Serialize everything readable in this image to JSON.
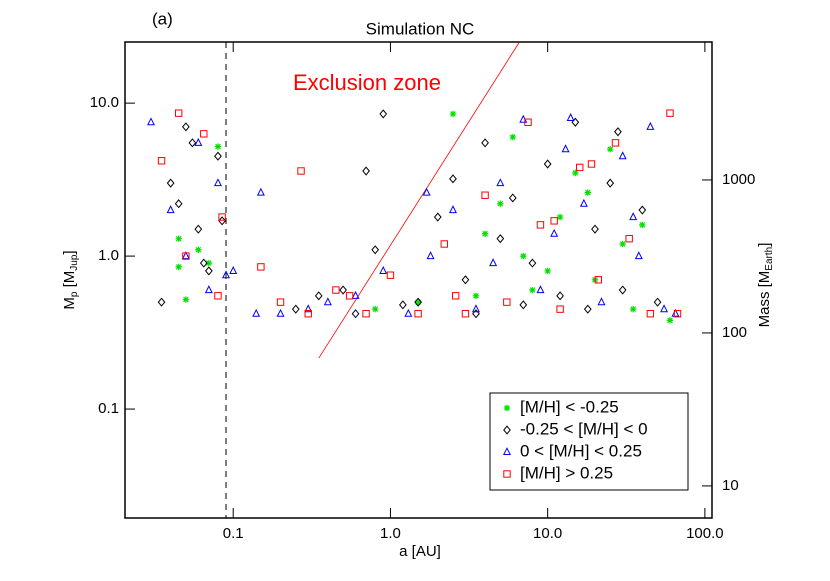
{
  "chart_data": {
    "type": "scatter",
    "panel_label": "(a)",
    "title": "Simulation NC",
    "x_label": "a [AU]",
    "y_label_parts": [
      "M",
      "p",
      " [M",
      "Jup",
      "]"
    ],
    "y2_label_parts": [
      "Mass [M",
      "Earth",
      "]"
    ],
    "annotation": "Exclusion zone",
    "annotation_color": "#ff0000",
    "exclusion_line": {
      "x": [
        0.35,
        6.6
      ],
      "y": [
        0.215,
        25
      ]
    },
    "vline": 0.09,
    "log_x": true,
    "log_y": true,
    "xlim": [
      0.0205,
      111
    ],
    "ylim": [
      0.0194,
      25.1
    ],
    "y2lim": [
      6.17,
      7977
    ],
    "xticks": [
      0.1,
      {
        "value": 1,
        "label": "1.0"
      },
      {
        "value": 10,
        "label": "10.0"
      },
      {
        "value": 100,
        "label": "100.0"
      }
    ],
    "yticks": [
      0.1,
      {
        "value": 1,
        "label": "1.0"
      },
      {
        "value": 10,
        "label": "10.0"
      }
    ],
    "y2ticks": [
      10,
      100,
      1000
    ],
    "legend": "lower right",
    "series": [
      {
        "name": "[M/H] < -0.25",
        "color": "#00e000",
        "marker": "asterisk",
        "x": [
          0.045,
          0.05,
          0.07,
          0.08,
          0.06,
          2.5,
          3.5,
          5,
          7,
          8,
          12,
          15,
          20,
          25,
          30,
          35,
          1.5,
          0.8,
          4,
          6,
          10,
          18,
          40,
          60,
          0.045
        ],
        "y": [
          1.3,
          0.52,
          0.9,
          5.2,
          1.1,
          8.5,
          0.55,
          2.2,
          1.0,
          0.6,
          1.8,
          3.5,
          0.7,
          5.0,
          1.2,
          0.45,
          0.5,
          0.45,
          1.4,
          6.0,
          0.8,
          2.6,
          1.6,
          0.38,
          0.85
        ]
      },
      {
        "name": "-0.25 < [M/H] < 0",
        "color": "#000000",
        "marker": "diamond",
        "x": [
          0.035,
          0.04,
          0.05,
          0.06,
          0.07,
          0.08,
          0.085,
          0.045,
          0.055,
          0.065,
          0.25,
          0.35,
          0.5,
          0.7,
          0.9,
          1.2,
          0.8,
          1.5,
          2,
          2.5,
          3,
          4,
          5,
          6,
          8,
          10,
          12,
          15,
          20,
          25,
          30,
          40,
          50,
          0.6,
          3.5,
          7,
          18,
          28
        ],
        "y": [
          0.5,
          3.0,
          7.0,
          1.5,
          0.8,
          4.5,
          1.7,
          2.2,
          5.5,
          0.9,
          0.45,
          0.55,
          0.6,
          3.6,
          8.5,
          0.48,
          1.1,
          0.5,
          1.8,
          3.2,
          0.7,
          5.5,
          1.3,
          2.4,
          0.9,
          4.0,
          0.55,
          7.5,
          1.5,
          3.0,
          0.6,
          2.0,
          0.5,
          0.42,
          0.42,
          0.48,
          0.45,
          6.5
        ]
      },
      {
        "name": "0 < [M/H] < 0.25",
        "color": "#0000ff",
        "marker": "triangle",
        "x": [
          0.03,
          0.04,
          0.05,
          0.06,
          0.07,
          0.08,
          0.09,
          0.1,
          0.15,
          0.2,
          0.3,
          0.4,
          0.6,
          0.9,
          1.3,
          1.8,
          2.5,
          3.5,
          5,
          7,
          9,
          11,
          14,
          17,
          22,
          30,
          38,
          45,
          55,
          65,
          1.7,
          4.5,
          13,
          35,
          0.14
        ],
        "y": [
          7.5,
          2.0,
          1.0,
          5.5,
          0.6,
          3.0,
          0.75,
          0.8,
          2.6,
          0.42,
          0.45,
          0.5,
          0.55,
          0.8,
          0.42,
          1.0,
          2.0,
          0.45,
          3.0,
          7.8,
          0.6,
          1.4,
          8.0,
          2.2,
          0.5,
          4.5,
          1.0,
          7.0,
          0.45,
          0.42,
          2.6,
          0.9,
          5.0,
          1.8,
          0.42
        ]
      },
      {
        "name": "[M/H] > 0.25",
        "color": "#ff0000",
        "marker": "square",
        "x": [
          0.035,
          0.045,
          0.05,
          0.065,
          0.08,
          0.085,
          0.15,
          0.2,
          0.3,
          0.45,
          0.27,
          0.7,
          1.0,
          1.5,
          2.2,
          3,
          4,
          5.5,
          7.5,
          9,
          12,
          16,
          21,
          27,
          33,
          45,
          60,
          67,
          0.55,
          2.6,
          11,
          19
        ],
        "y": [
          4.2,
          8.6,
          1.0,
          6.3,
          0.55,
          1.8,
          0.85,
          0.5,
          0.42,
          0.6,
          3.6,
          0.42,
          0.75,
          0.42,
          1.2,
          0.42,
          2.5,
          0.5,
          7.5,
          1.6,
          0.45,
          3.8,
          0.7,
          5.5,
          1.3,
          0.42,
          8.6,
          0.42,
          0.55,
          0.55,
          1.7,
          4.0
        ]
      }
    ]
  }
}
